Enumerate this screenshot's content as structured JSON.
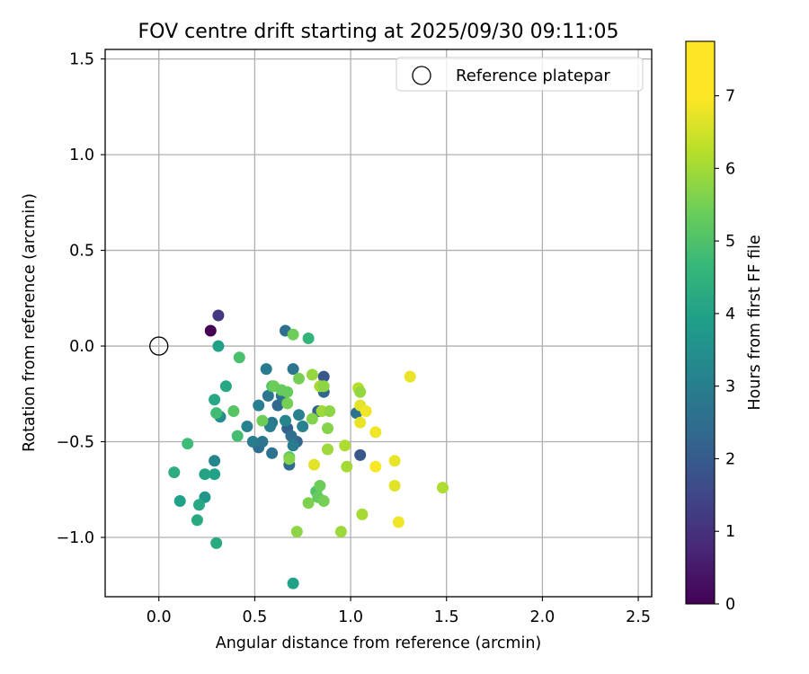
{
  "chart_data": {
    "type": "scatter",
    "title": "FOV centre drift starting at 2025/09/30 09:11:05",
    "xlabel": "Angular distance from reference (arcmin)",
    "ylabel": "Rotation from reference (arcmin)",
    "xlim": [
      -0.28,
      2.57
    ],
    "ylim": [
      -1.31,
      1.55
    ],
    "xticks": [
      0.0,
      0.5,
      1.0,
      1.5,
      2.0,
      2.5
    ],
    "xtick_labels": [
      "0.0",
      "0.5",
      "1.0",
      "1.5",
      "2.0",
      "2.5"
    ],
    "yticks": [
      -1.0,
      -0.5,
      0.0,
      0.5,
      1.0,
      1.5
    ],
    "ytick_labels": [
      "−1.0",
      "−0.5",
      "0.0",
      "0.5",
      "1.0",
      "1.5"
    ],
    "grid": true,
    "legend": {
      "position": "top-right",
      "entries": [
        "Reference platepar"
      ]
    },
    "reference_point": {
      "x": 0.0,
      "y": 0.0,
      "label": "Reference platepar"
    },
    "colorbar": {
      "label": "Hours from first FF file",
      "min": 0,
      "max": 7.75,
      "colormap": "viridis",
      "ticks": [
        0,
        1,
        2,
        3,
        4,
        5,
        6,
        7
      ],
      "tick_labels": [
        "0",
        "1",
        "2",
        "3",
        "4",
        "5",
        "6",
        "7"
      ]
    },
    "points": [
      {
        "x": 0.27,
        "y": 0.08,
        "t": 0.0
      },
      {
        "x": 0.31,
        "y": 0.16,
        "t": 1.3
      },
      {
        "x": 0.66,
        "y": 0.08,
        "t": 2.8
      },
      {
        "x": 0.86,
        "y": -0.16,
        "t": 2.1
      },
      {
        "x": 0.86,
        "y": -0.24,
        "t": 2.6
      },
      {
        "x": 0.83,
        "y": -0.34,
        "t": 2.4
      },
      {
        "x": 1.03,
        "y": -0.35,
        "t": 2.9
      },
      {
        "x": 1.05,
        "y": -0.57,
        "t": 2.1
      },
      {
        "x": 0.56,
        "y": -0.12,
        "t": 3.2
      },
      {
        "x": 0.7,
        "y": -0.12,
        "t": 3.0
      },
      {
        "x": 0.57,
        "y": -0.26,
        "t": 3.0
      },
      {
        "x": 0.62,
        "y": -0.31,
        "t": 2.6
      },
      {
        "x": 0.64,
        "y": -0.26,
        "t": 2.9
      },
      {
        "x": 0.67,
        "y": -0.43,
        "t": 2.4
      },
      {
        "x": 0.72,
        "y": -0.5,
        "t": 2.5
      },
      {
        "x": 0.69,
        "y": -0.47,
        "t": 2.8
      },
      {
        "x": 0.7,
        "y": -0.52,
        "t": 3.2
      },
      {
        "x": 0.68,
        "y": -0.62,
        "t": 2.7
      },
      {
        "x": 0.59,
        "y": -0.56,
        "t": 2.9
      },
      {
        "x": 0.52,
        "y": -0.53,
        "t": 2.7
      },
      {
        "x": 0.54,
        "y": -0.5,
        "t": 3.0
      },
      {
        "x": 0.49,
        "y": -0.5,
        "t": 3.2
      },
      {
        "x": 0.46,
        "y": -0.42,
        "t": 3.4
      },
      {
        "x": 0.52,
        "y": -0.31,
        "t": 3.3
      },
      {
        "x": 0.59,
        "y": -0.4,
        "t": 3.1
      },
      {
        "x": 0.58,
        "y": -0.42,
        "t": 3.3
      },
      {
        "x": 0.66,
        "y": -0.39,
        "t": 3.6
      },
      {
        "x": 0.73,
        "y": -0.36,
        "t": 3.4
      },
      {
        "x": 0.75,
        "y": -0.42,
        "t": 3.4
      },
      {
        "x": 0.29,
        "y": -0.6,
        "t": 3.6
      },
      {
        "x": 0.31,
        "y": 0.0,
        "t": 4.4
      },
      {
        "x": 0.32,
        "y": -0.37,
        "t": 3.8
      },
      {
        "x": 0.29,
        "y": -0.28,
        "t": 4.6
      },
      {
        "x": 0.35,
        "y": -0.21,
        "t": 4.6
      },
      {
        "x": 0.3,
        "y": -0.35,
        "t": 5.3
      },
      {
        "x": 0.29,
        "y": -0.67,
        "t": 4.4
      },
      {
        "x": 0.24,
        "y": -0.67,
        "t": 4.5
      },
      {
        "x": 0.24,
        "y": -0.79,
        "t": 4.1
      },
      {
        "x": 0.21,
        "y": -0.83,
        "t": 4.6
      },
      {
        "x": 0.2,
        "y": -0.91,
        "t": 4.7
      },
      {
        "x": 0.3,
        "y": -1.03,
        "t": 4.7
      },
      {
        "x": 0.11,
        "y": -0.81,
        "t": 4.4
      },
      {
        "x": 0.08,
        "y": -0.66,
        "t": 4.8
      },
      {
        "x": 0.15,
        "y": -0.51,
        "t": 5.3
      },
      {
        "x": 0.42,
        "y": -0.06,
        "t": 5.5
      },
      {
        "x": 0.39,
        "y": -0.34,
        "t": 5.7
      },
      {
        "x": 0.41,
        "y": -0.47,
        "t": 5.4
      },
      {
        "x": 0.7,
        "y": -1.24,
        "t": 4.4
      },
      {
        "x": 0.78,
        "y": 0.04,
        "t": 5.1
      },
      {
        "x": 0.7,
        "y": 0.06,
        "t": 6.0
      },
      {
        "x": 0.54,
        "y": -0.39,
        "t": 6.0
      },
      {
        "x": 0.59,
        "y": -0.21,
        "t": 5.6
      },
      {
        "x": 0.6,
        "y": -0.21,
        "t": 6.0
      },
      {
        "x": 0.64,
        "y": -0.23,
        "t": 5.9
      },
      {
        "x": 0.67,
        "y": -0.24,
        "t": 5.9
      },
      {
        "x": 0.67,
        "y": -0.3,
        "t": 6.1
      },
      {
        "x": 0.68,
        "y": -0.58,
        "t": 5.7
      },
      {
        "x": 0.68,
        "y": -0.59,
        "t": 6.3
      },
      {
        "x": 0.73,
        "y": -0.17,
        "t": 6.1
      },
      {
        "x": 0.78,
        "y": -0.82,
        "t": 6.2
      },
      {
        "x": 0.82,
        "y": -0.76,
        "t": 5.6
      },
      {
        "x": 0.83,
        "y": -0.79,
        "t": 5.9
      },
      {
        "x": 0.84,
        "y": -0.73,
        "t": 6.0
      },
      {
        "x": 0.86,
        "y": -0.81,
        "t": 6.1
      },
      {
        "x": 0.8,
        "y": -0.38,
        "t": 6.3
      },
      {
        "x": 0.8,
        "y": -0.15,
        "t": 6.5
      },
      {
        "x": 0.84,
        "y": -0.21,
        "t": 6.7
      },
      {
        "x": 0.86,
        "y": -0.21,
        "t": 6.4
      },
      {
        "x": 0.85,
        "y": -0.34,
        "t": 6.6
      },
      {
        "x": 0.89,
        "y": -0.34,
        "t": 6.4
      },
      {
        "x": 0.88,
        "y": -0.43,
        "t": 6.3
      },
      {
        "x": 0.88,
        "y": -0.54,
        "t": 6.6
      },
      {
        "x": 0.97,
        "y": -0.52,
        "t": 6.8
      },
      {
        "x": 0.98,
        "y": -0.63,
        "t": 6.7
      },
      {
        "x": 0.72,
        "y": -0.97,
        "t": 6.4
      },
      {
        "x": 0.95,
        "y": -0.97,
        "t": 6.6
      },
      {
        "x": 1.04,
        "y": -0.22,
        "t": 6.9
      },
      {
        "x": 1.05,
        "y": -0.24,
        "t": 6.5
      },
      {
        "x": 1.06,
        "y": -0.88,
        "t": 6.7
      },
      {
        "x": 0.81,
        "y": -0.62,
        "t": 7.4
      },
      {
        "x": 1.05,
        "y": -0.31,
        "t": 7.4
      },
      {
        "x": 1.08,
        "y": -0.34,
        "t": 7.6
      },
      {
        "x": 1.05,
        "y": -0.4,
        "t": 7.5
      },
      {
        "x": 1.13,
        "y": -0.45,
        "t": 7.6
      },
      {
        "x": 1.13,
        "y": -0.63,
        "t": 7.7
      },
      {
        "x": 1.23,
        "y": -0.6,
        "t": 7.5
      },
      {
        "x": 1.23,
        "y": -0.73,
        "t": 7.4
      },
      {
        "x": 1.25,
        "y": -0.92,
        "t": 7.6
      },
      {
        "x": 1.31,
        "y": -0.16,
        "t": 7.5
      },
      {
        "x": 1.48,
        "y": -0.74,
        "t": 6.8
      }
    ]
  }
}
